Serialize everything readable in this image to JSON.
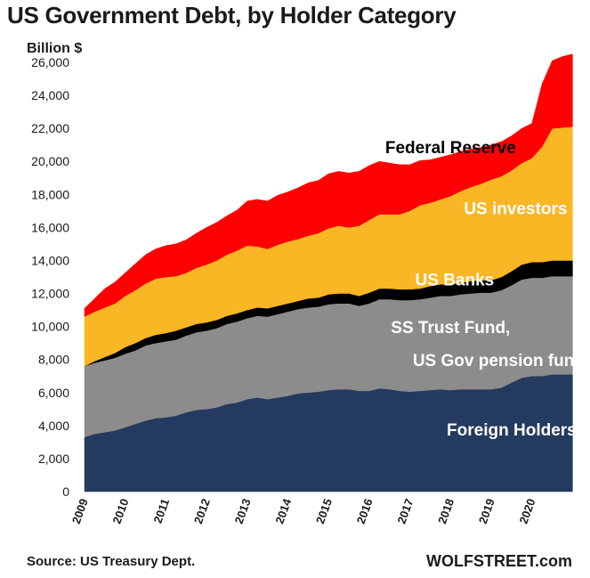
{
  "header": {
    "title": "US Government Debt, by Holder Category",
    "unit": "Billion $"
  },
  "footer": {
    "source": "Source: US Treasury Dept.",
    "brand": "WOLFSTREET.com"
  },
  "chart_data": {
    "type": "area",
    "stacked": true,
    "title": "US Government Debt, by Holder Category",
    "ylabel": "Billion $",
    "ylim": [
      0,
      26000
    ],
    "yticks": [
      0,
      2000,
      4000,
      6000,
      8000,
      10000,
      12000,
      14000,
      16000,
      18000,
      20000,
      22000,
      24000,
      26000
    ],
    "ytick_labels": [
      "0",
      "2,000",
      "4,000",
      "6,000",
      "8,000",
      "10,000",
      "12,000",
      "14,000",
      "16,000",
      "18,000",
      "20,000",
      "22,000",
      "24,000",
      "26,000"
    ],
    "xlim": [
      2009,
      2021.1
    ],
    "xticks": [
      "2009",
      "2010",
      "2011",
      "2012",
      "2013",
      "2014",
      "2015",
      "2016",
      "2017",
      "2018",
      "2019",
      "2020"
    ],
    "grid": false,
    "legend": "inline labels",
    "x": [
      2009.0,
      2009.25,
      2009.5,
      2009.75,
      2010.0,
      2010.25,
      2010.5,
      2010.75,
      2011.0,
      2011.25,
      2011.5,
      2011.75,
      2012.0,
      2012.25,
      2012.5,
      2012.75,
      2013.0,
      2013.25,
      2013.5,
      2013.75,
      2014.0,
      2014.25,
      2014.5,
      2014.75,
      2015.0,
      2015.25,
      2015.5,
      2015.75,
      2016.0,
      2016.25,
      2016.5,
      2016.75,
      2017.0,
      2017.25,
      2017.5,
      2017.75,
      2018.0,
      2018.25,
      2018.5,
      2018.75,
      2019.0,
      2019.25,
      2019.5,
      2019.75,
      2020.0,
      2020.25,
      2020.5,
      2020.75,
      2021.0
    ],
    "series": [
      {
        "name": "Foreign Holders",
        "color": "#243a5e",
        "values": [
          3300,
          3500,
          3600,
          3700,
          3900,
          4100,
          4300,
          4450,
          4500,
          4600,
          4800,
          4950,
          5000,
          5100,
          5300,
          5400,
          5600,
          5700,
          5600,
          5700,
          5800,
          5950,
          6000,
          6050,
          6150,
          6200,
          6200,
          6100,
          6100,
          6250,
          6200,
          6100,
          6050,
          6100,
          6150,
          6200,
          6150,
          6200,
          6200,
          6200,
          6200,
          6300,
          6600,
          6900,
          7000,
          7000,
          7100,
          7100,
          7100
        ]
      },
      {
        "name": "SS Trust Fund, US Gov pension funds",
        "color": "#8c8c8c",
        "values": [
          4300,
          4300,
          4350,
          4400,
          4450,
          4450,
          4550,
          4550,
          4600,
          4600,
          4650,
          4700,
          4750,
          4800,
          4850,
          4900,
          4900,
          4950,
          5000,
          5050,
          5100,
          5100,
          5150,
          5150,
          5200,
          5200,
          5200,
          5150,
          5300,
          5400,
          5450,
          5500,
          5550,
          5550,
          5600,
          5650,
          5700,
          5750,
          5800,
          5850,
          5850,
          5900,
          5900,
          5950,
          5950,
          5950,
          5950,
          5950,
          5950
        ]
      },
      {
        "name": "US Banks",
        "color": "#000000",
        "values": [
          0,
          100,
          200,
          300,
          400,
          450,
          450,
          500,
          500,
          550,
          500,
          500,
          500,
          500,
          500,
          500,
          500,
          500,
          500,
          500,
          500,
          500,
          550,
          550,
          600,
          600,
          600,
          600,
          650,
          650,
          650,
          650,
          650,
          650,
          700,
          700,
          700,
          700,
          750,
          750,
          750,
          800,
          850,
          900,
          950,
          950,
          950,
          950,
          950
        ]
      },
      {
        "name": "US investors",
        "color": "#f9b625",
        "values": [
          3000,
          3000,
          3000,
          3000,
          3100,
          3200,
          3300,
          3400,
          3400,
          3300,
          3300,
          3400,
          3500,
          3600,
          3700,
          3800,
          3900,
          3700,
          3600,
          3700,
          3750,
          3750,
          3800,
          3900,
          4000,
          4100,
          4000,
          4250,
          4400,
          4500,
          4500,
          4550,
          4750,
          5050,
          5050,
          5150,
          5350,
          5550,
          5700,
          5850,
          6100,
          6100,
          6100,
          6150,
          6300,
          7000,
          8000,
          8050,
          8100
        ]
      },
      {
        "name": "Federal Reserve",
        "color": "#ff0000",
        "values": [
          500,
          800,
          1150,
          1300,
          1400,
          1600,
          1750,
          1800,
          1900,
          1950,
          2000,
          2100,
          2250,
          2300,
          2350,
          2450,
          2700,
          2850,
          2900,
          3000,
          3000,
          3100,
          3200,
          3200,
          3300,
          3300,
          3300,
          3300,
          3300,
          3200,
          3100,
          3000,
          2800,
          2700,
          2600,
          2550,
          2500,
          2400,
          2300,
          2200,
          2100,
          2100,
          2100,
          2100,
          2100,
          3800,
          4100,
          4300,
          4400
        ]
      }
    ],
    "series_labels": [
      {
        "text": "Federal Reserve",
        "color": "#000000",
        "anchor_x": 2018.0,
        "anchor_y": 20500
      },
      {
        "text": "US investors",
        "color": "#ffffff",
        "anchor_x": 2019.6,
        "anchor_y": 16800
      },
      {
        "text": "US Banks",
        "color": "#ffffff",
        "anchor_x": 2018.1,
        "anchor_y": 12500
      },
      {
        "text": "SS Trust Fund,",
        "color": "#ffffff",
        "anchor_x": 2018.0,
        "anchor_y": 9600
      },
      {
        "text": "US Gov pension funds",
        "color": "#ffffff",
        "anchor_x": 2019.3,
        "anchor_y": 7600
      },
      {
        "text": "Foreign Holders",
        "color": "#ffffff",
        "anchor_x": 2019.5,
        "anchor_y": 3400
      }
    ]
  }
}
